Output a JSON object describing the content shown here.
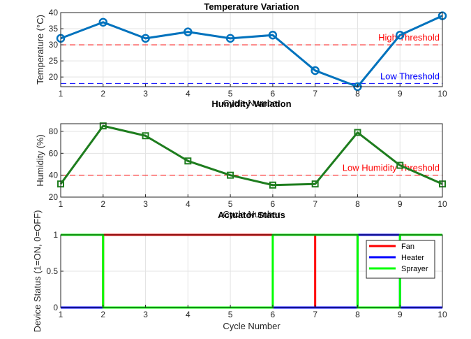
{
  "chart_data": [
    {
      "type": "line",
      "title": "Temperature Variation",
      "xlabel": "Cycle Number",
      "ylabel": "Temperature (°C)",
      "x": [
        1,
        2,
        3,
        4,
        5,
        6,
        7,
        8,
        9,
        10
      ],
      "xlim": [
        1,
        10
      ],
      "ylim": [
        17,
        40
      ],
      "yticks": [
        20,
        25,
        30,
        35,
        40
      ],
      "grid": true,
      "series": [
        {
          "values": [
            32,
            37,
            32,
            34,
            32,
            33,
            22,
            17,
            33,
            39
          ],
          "color": "#0072BD",
          "marker": "circle"
        }
      ],
      "thresholds": [
        {
          "label": "High Threshold",
          "value": 30,
          "color": "#ff0000"
        },
        {
          "label": "Low Threshold",
          "value": 18,
          "color": "#0000ff"
        }
      ]
    },
    {
      "type": "line",
      "title": "Humidity Variation",
      "xlabel": "Cycle Number",
      "ylabel": "Humidity (%)",
      "x": [
        1,
        2,
        3,
        4,
        5,
        6,
        7,
        8,
        9,
        10
      ],
      "xlim": [
        1,
        10
      ],
      "ylim": [
        20,
        87
      ],
      "yticks": [
        20,
        40,
        60,
        80
      ],
      "grid": true,
      "series": [
        {
          "values": [
            32,
            85,
            76,
            53,
            40,
            31,
            32,
            79,
            49,
            32
          ],
          "color": "#1e7d1e",
          "marker": "square"
        }
      ],
      "thresholds": [
        {
          "label": "Low Humidity Threshold",
          "value": 40,
          "color": "#ff0000"
        }
      ]
    },
    {
      "type": "line",
      "step": true,
      "title": "Actuator Status",
      "xlabel": "Cycle Number",
      "ylabel": "Device Status (1=ON, 0=OFF)",
      "x": [
        1,
        2,
        3,
        4,
        5,
        6,
        7,
        8,
        9,
        10
      ],
      "xlim": [
        1,
        10
      ],
      "ylim": [
        0,
        1
      ],
      "yticks": [
        0,
        0.5,
        1
      ],
      "grid": true,
      "legend": "top-right",
      "series": [
        {
          "name": "Fan",
          "values": [
            0,
            1,
            1,
            1,
            1,
            1,
            0,
            1,
            1,
            1
          ],
          "color": "#ff0000"
        },
        {
          "name": "Heater",
          "values": [
            0,
            0,
            0,
            0,
            0,
            0,
            0,
            1,
            0,
            0
          ],
          "color": "#0000ff"
        },
        {
          "name": "Sprayer",
          "values": [
            1,
            0,
            0,
            0,
            0,
            1,
            1,
            0,
            1,
            1
          ],
          "color": "#00ff00"
        }
      ]
    }
  ]
}
